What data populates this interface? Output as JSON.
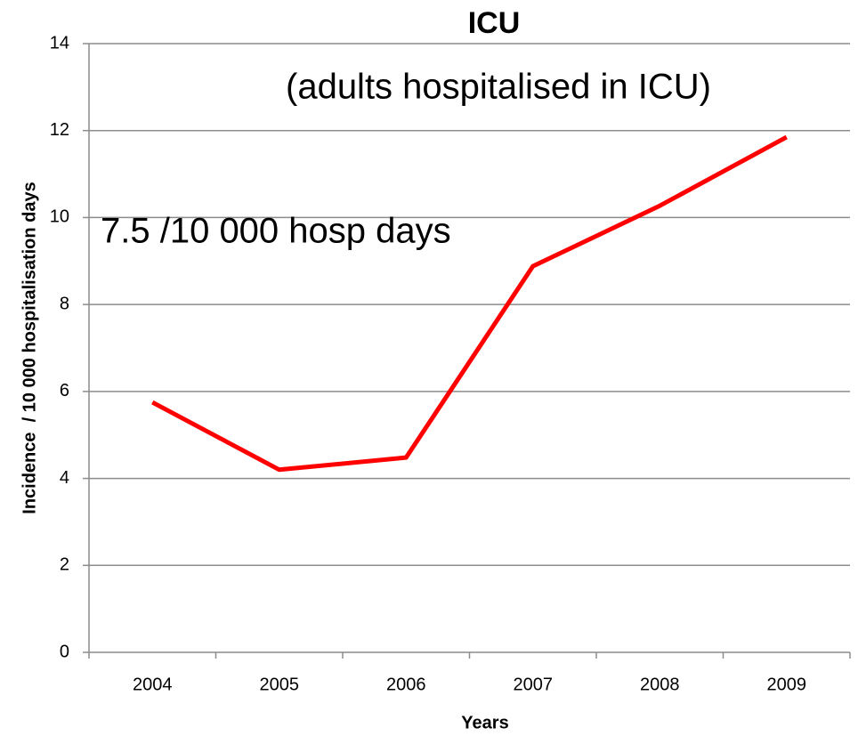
{
  "chart_data": {
    "type": "line",
    "title": "ICU",
    "subtitle": "(adults hospitalised in ICU)",
    "annotation": "7.5 /10 000 hosp days",
    "x_label": "Years",
    "y_label": "Incidence  / 10 000 hospitalisation days",
    "categories": [
      "2004",
      "2005",
      "2006",
      "2007",
      "2008",
      "2009"
    ],
    "values": [
      5.75,
      4.2,
      4.48,
      8.88,
      10.27,
      11.85
    ],
    "color": "#ff0000",
    "ylim": [
      0,
      14
    ],
    "yticks": [
      0,
      2,
      4,
      6,
      8,
      10,
      12,
      14
    ],
    "grid": true
  }
}
